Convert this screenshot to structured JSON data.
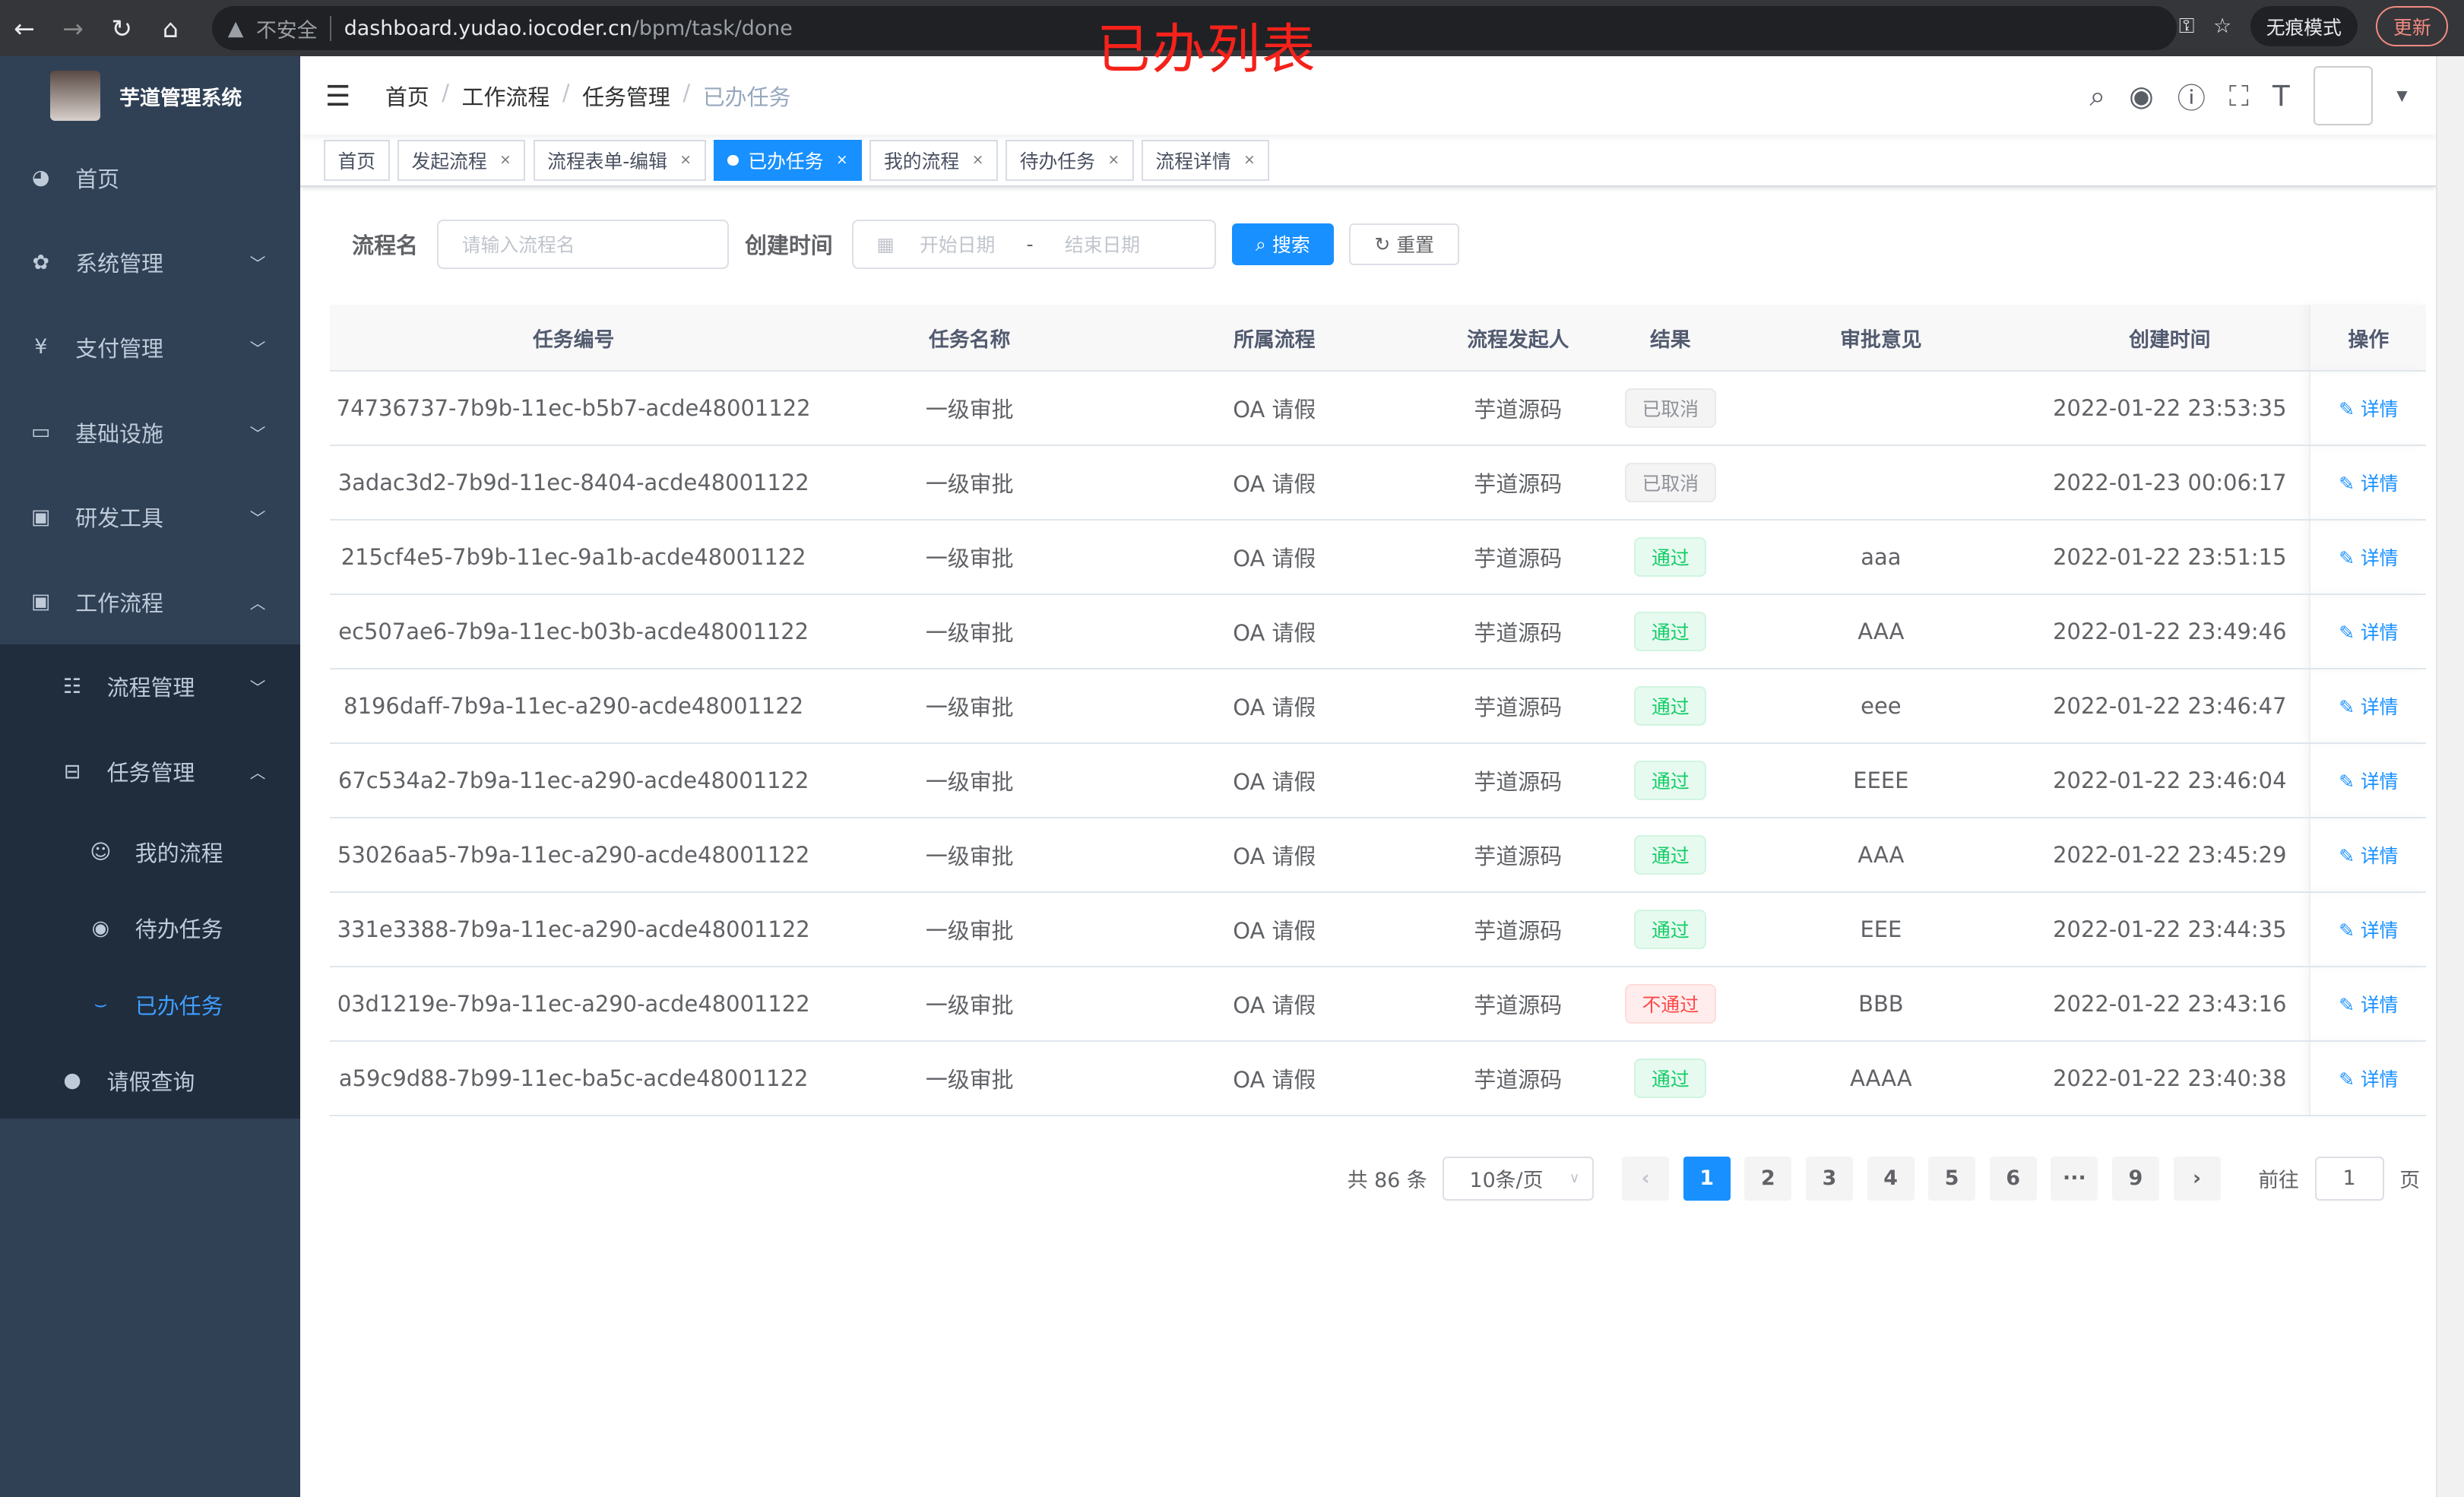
{
  "browser": {
    "security": "不安全",
    "url_host": "dashboard.yudao.iocoder.cn",
    "url_path": "/bpm/task/done",
    "incognito": "无痕模式",
    "update": "更新"
  },
  "overlay_title": "已办列表",
  "sidebar": {
    "title": "芋道管理系统",
    "items": [
      {
        "label": "首页",
        "icon": "dashboard-icon"
      },
      {
        "label": "系统管理",
        "icon": "gear-icon"
      },
      {
        "label": "支付管理",
        "icon": "yen-icon"
      },
      {
        "label": "基础设施",
        "icon": "monitor-icon"
      },
      {
        "label": "研发工具",
        "icon": "toolbox-icon"
      },
      {
        "label": "工作流程",
        "icon": "toolbox-icon"
      }
    ],
    "sub": [
      {
        "label": "流程管理"
      },
      {
        "label": "任务管理"
      }
    ],
    "sub2": [
      {
        "label": "我的流程"
      },
      {
        "label": "待办任务"
      },
      {
        "label": "已办任务"
      }
    ],
    "leave": {
      "label": "请假查询"
    }
  },
  "breadcrumb": [
    "首页",
    "工作流程",
    "任务管理",
    "已办任务"
  ],
  "tags": [
    "首页",
    "发起流程",
    "流程表单-编辑",
    "已办任务",
    "我的流程",
    "待办任务",
    "流程详情"
  ],
  "form": {
    "name_label": "流程名",
    "name_placeholder": "请输入流程名",
    "time_label": "创建时间",
    "start_placeholder": "开始日期",
    "range_sep": "-",
    "end_placeholder": "结束日期",
    "search": "搜索",
    "reset": "重置"
  },
  "table": {
    "headers": [
      "任务编号",
      "任务名称",
      "所属流程",
      "流程发起人",
      "结果",
      "审批意见",
      "创建时间",
      "操作"
    ],
    "rows": [
      [
        "74736737-7b9b-11ec-b5b7-acde48001122",
        "一级审批",
        "OA 请假",
        "芋道源码",
        "已取消",
        "",
        "2022-01-22 23:53:35",
        "详情"
      ],
      [
        "3adac3d2-7b9d-11ec-8404-acde48001122",
        "一级审批",
        "OA 请假",
        "芋道源码",
        "已取消",
        "",
        "2022-01-23 00:06:17",
        "详情"
      ],
      [
        "215cf4e5-7b9b-11ec-9a1b-acde48001122",
        "一级审批",
        "OA 请假",
        "芋道源码",
        "通过",
        "aaa",
        "2022-01-22 23:51:15",
        "详情"
      ],
      [
        "ec507ae6-7b9a-11ec-b03b-acde48001122",
        "一级审批",
        "OA 请假",
        "芋道源码",
        "通过",
        "AAA",
        "2022-01-22 23:49:46",
        "详情"
      ],
      [
        "8196daff-7b9a-11ec-a290-acde48001122",
        "一级审批",
        "OA 请假",
        "芋道源码",
        "通过",
        "eee",
        "2022-01-22 23:46:47",
        "详情"
      ],
      [
        "67c534a2-7b9a-11ec-a290-acde48001122",
        "一级审批",
        "OA 请假",
        "芋道源码",
        "通过",
        "EEEE",
        "2022-01-22 23:46:04",
        "详情"
      ],
      [
        "53026aa5-7b9a-11ec-a290-acde48001122",
        "一级审批",
        "OA 请假",
        "芋道源码",
        "通过",
        "AAA",
        "2022-01-22 23:45:29",
        "详情"
      ],
      [
        "331e3388-7b9a-11ec-a290-acde48001122",
        "一级审批",
        "OA 请假",
        "芋道源码",
        "通过",
        "EEE",
        "2022-01-22 23:44:35",
        "详情"
      ],
      [
        "03d1219e-7b9a-11ec-a290-acde48001122",
        "一级审批",
        "OA 请假",
        "芋道源码",
        "不通过",
        "BBB",
        "2022-01-22 23:43:16",
        "详情"
      ],
      [
        "a59c9d88-7b99-11ec-ba5c-acde48001122",
        "一级审批",
        "OA 请假",
        "芋道源码",
        "通过",
        "AAAA",
        "2022-01-22 23:40:38",
        "详情"
      ]
    ]
  },
  "pagination": {
    "total": "共 86 条",
    "page_size": "10条/页",
    "pages": [
      "1",
      "2",
      "3",
      "4",
      "5",
      "6",
      "···",
      "9"
    ],
    "current": "1",
    "goto_label": "前往",
    "goto_value": "1",
    "page_suffix": "页"
  },
  "colors": {
    "sidebar": "#304156",
    "accent": "#1890ff",
    "success": "#13ce66",
    "danger": "#ff4949",
    "info": "#909399"
  }
}
